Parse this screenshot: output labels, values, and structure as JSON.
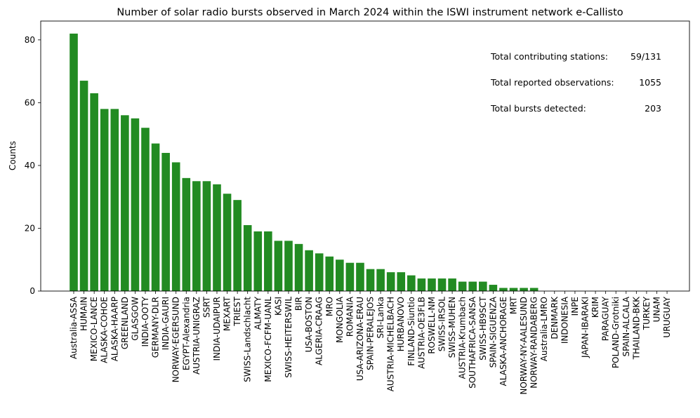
{
  "chart_data": {
    "type": "bar",
    "title": "Number of solar radio bursts observed in March 2024 within the ISWI instrument network e-Callisto",
    "xlabel": "",
    "ylabel": "Counts",
    "ylim": [
      0,
      86
    ],
    "yticks": [
      0,
      20,
      40,
      60,
      80
    ],
    "grid": false,
    "bar_color": "#228b22",
    "categories": [
      "Australia-ASSA",
      "HUMAIN",
      "MEXICO-LANCE",
      "ALASKA-COHOE",
      "ALASKA-HAARP",
      "GREENLAND",
      "GLASGOW",
      "INDIA-OOTY",
      "GERMANY-DLR",
      "INDIA-GAURI",
      "NORWAY-EGERSUND",
      "EGYPT-Alexandria",
      "AUSTRIA-UNIGRAZ",
      "SSRT",
      "INDIA-UDAIPUR",
      "MEXART",
      "TRIEST",
      "SWISS-Landschlacht",
      "ALMATY",
      "MEXICO-FCFM-UANL",
      "KASI",
      "SWISS-HEITERSWIL",
      "BIR",
      "USA-BOSTON",
      "ALGERIA-CRAAG",
      "MRO",
      "MONGOLIA",
      "ROMANIA",
      "USA-ARIZONA-ERAU",
      "SPAIN-PERALEJOS",
      "SRI-Lanka",
      "AUSTRIA-MICHELBACH",
      "HURBANOVO",
      "FINLAND-Siuntio",
      "AUSTRIA-OE3FLB",
      "ROSWELL-NM",
      "SWISS-IRSOL",
      "SWISS-MUHEN",
      "AUSTRIA-Krumbach",
      "SOUTHAFRICA-SANSA",
      "SWISS-HB9SCT",
      "SPAIN-SIGUENZA",
      "ALASKA-ANCHORAGE",
      "MRT",
      "NORWAY-NY-AALESUND",
      "NORWAY-RANDABERG",
      "Australia-LMRO",
      "DENMARK",
      "INDONESIA",
      "INPE",
      "JAPAN-IBARAKI",
      "KRIM",
      "PARAGUAY",
      "POLAND-Grotniki",
      "SPAIN-ALCALA",
      "THAILAND-BKK",
      "TURKEY",
      "UNAM",
      "URUGUAY"
    ],
    "values": [
      82,
      67,
      63,
      58,
      58,
      56,
      55,
      52,
      47,
      44,
      41,
      36,
      35,
      35,
      34,
      31,
      29,
      21,
      19,
      19,
      16,
      16,
      15,
      13,
      12,
      11,
      10,
      9,
      9,
      7,
      7,
      6,
      6,
      5,
      4,
      4,
      4,
      4,
      3,
      3,
      3,
      2,
      1,
      1,
      1,
      1,
      0,
      0,
      0,
      0,
      0,
      0,
      0,
      0,
      0,
      0,
      0,
      0,
      0
    ],
    "annotations": [
      {
        "label": "Total contributing stations:",
        "value": "59/131"
      },
      {
        "label": "Total reported observations:",
        "value": "1055"
      },
      {
        "label": "Total bursts detected:",
        "value": "203"
      }
    ]
  }
}
